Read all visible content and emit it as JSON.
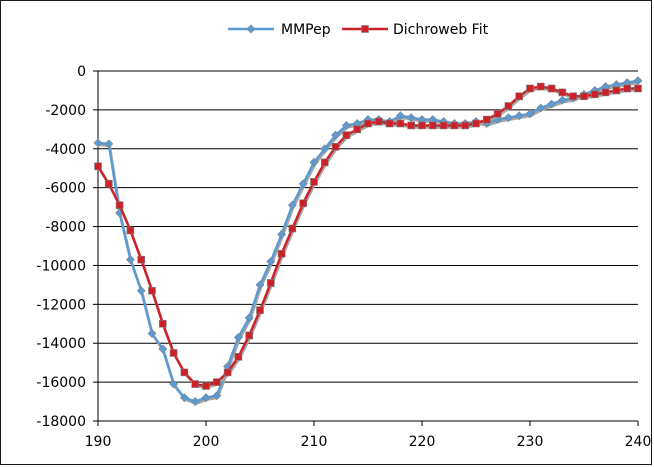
{
  "chart_data": {
    "type": "line",
    "title": "",
    "xlabel": "",
    "ylabel": "",
    "xlim": [
      190,
      240
    ],
    "ylim": [
      -18000,
      0
    ],
    "xticks": [
      "190",
      "200",
      "210",
      "220",
      "230",
      "240"
    ],
    "yticks": [
      "0",
      "-2000",
      "-4000",
      "-6000",
      "-8000",
      "-10000",
      "-12000",
      "-14000",
      "-16000",
      "-18000"
    ],
    "grid": "horizontal major gridlines",
    "legend_position": "top",
    "x": [
      190,
      191,
      192,
      193,
      194,
      195,
      196,
      197,
      198,
      199,
      200,
      201,
      202,
      203,
      204,
      205,
      206,
      207,
      208,
      209,
      210,
      211,
      212,
      213,
      214,
      215,
      216,
      217,
      218,
      219,
      220,
      221,
      222,
      223,
      224,
      225,
      226,
      227,
      228,
      229,
      230,
      231,
      232,
      233,
      234,
      235,
      236,
      237,
      238,
      239,
      240
    ],
    "series": [
      {
        "name": "MMPep",
        "color": "#5b9bd5",
        "marker": "diamond",
        "values": [
          -3700,
          -3750,
          -7300,
          -9700,
          -11300,
          -13500,
          -14300,
          -16100,
          -16800,
          -17000,
          -16800,
          -16700,
          -15200,
          -13700,
          -12700,
          -11000,
          -9800,
          -8400,
          -6900,
          -5800,
          -4700,
          -4000,
          -3300,
          -2800,
          -2700,
          -2500,
          -2500,
          -2600,
          -2300,
          -2400,
          -2500,
          -2500,
          -2600,
          -2700,
          -2700,
          -2600,
          -2700,
          -2500,
          -2400,
          -2300,
          -2200,
          -1900,
          -1700,
          -1500,
          -1400,
          -1200,
          -1000,
          -800,
          -700,
          -600,
          -500
        ]
      },
      {
        "name": "Dichroweb Fit",
        "color": "#cc2128",
        "marker": "square",
        "values": [
          -4900,
          -5800,
          -6900,
          -8200,
          -9700,
          -11300,
          -13000,
          -14500,
          -15500,
          -16100,
          -16200,
          -16000,
          -15500,
          -14700,
          -13600,
          -12300,
          -10900,
          -9400,
          -8100,
          -6800,
          -5700,
          -4700,
          -3900,
          -3300,
          -3000,
          -2700,
          -2600,
          -2700,
          -2700,
          -2800,
          -2800,
          -2800,
          -2800,
          -2800,
          -2800,
          -2700,
          -2500,
          -2200,
          -1800,
          -1300,
          -900,
          -800,
          -900,
          -1100,
          -1300,
          -1300,
          -1200,
          -1100,
          -1000,
          -900,
          -900
        ]
      }
    ]
  }
}
